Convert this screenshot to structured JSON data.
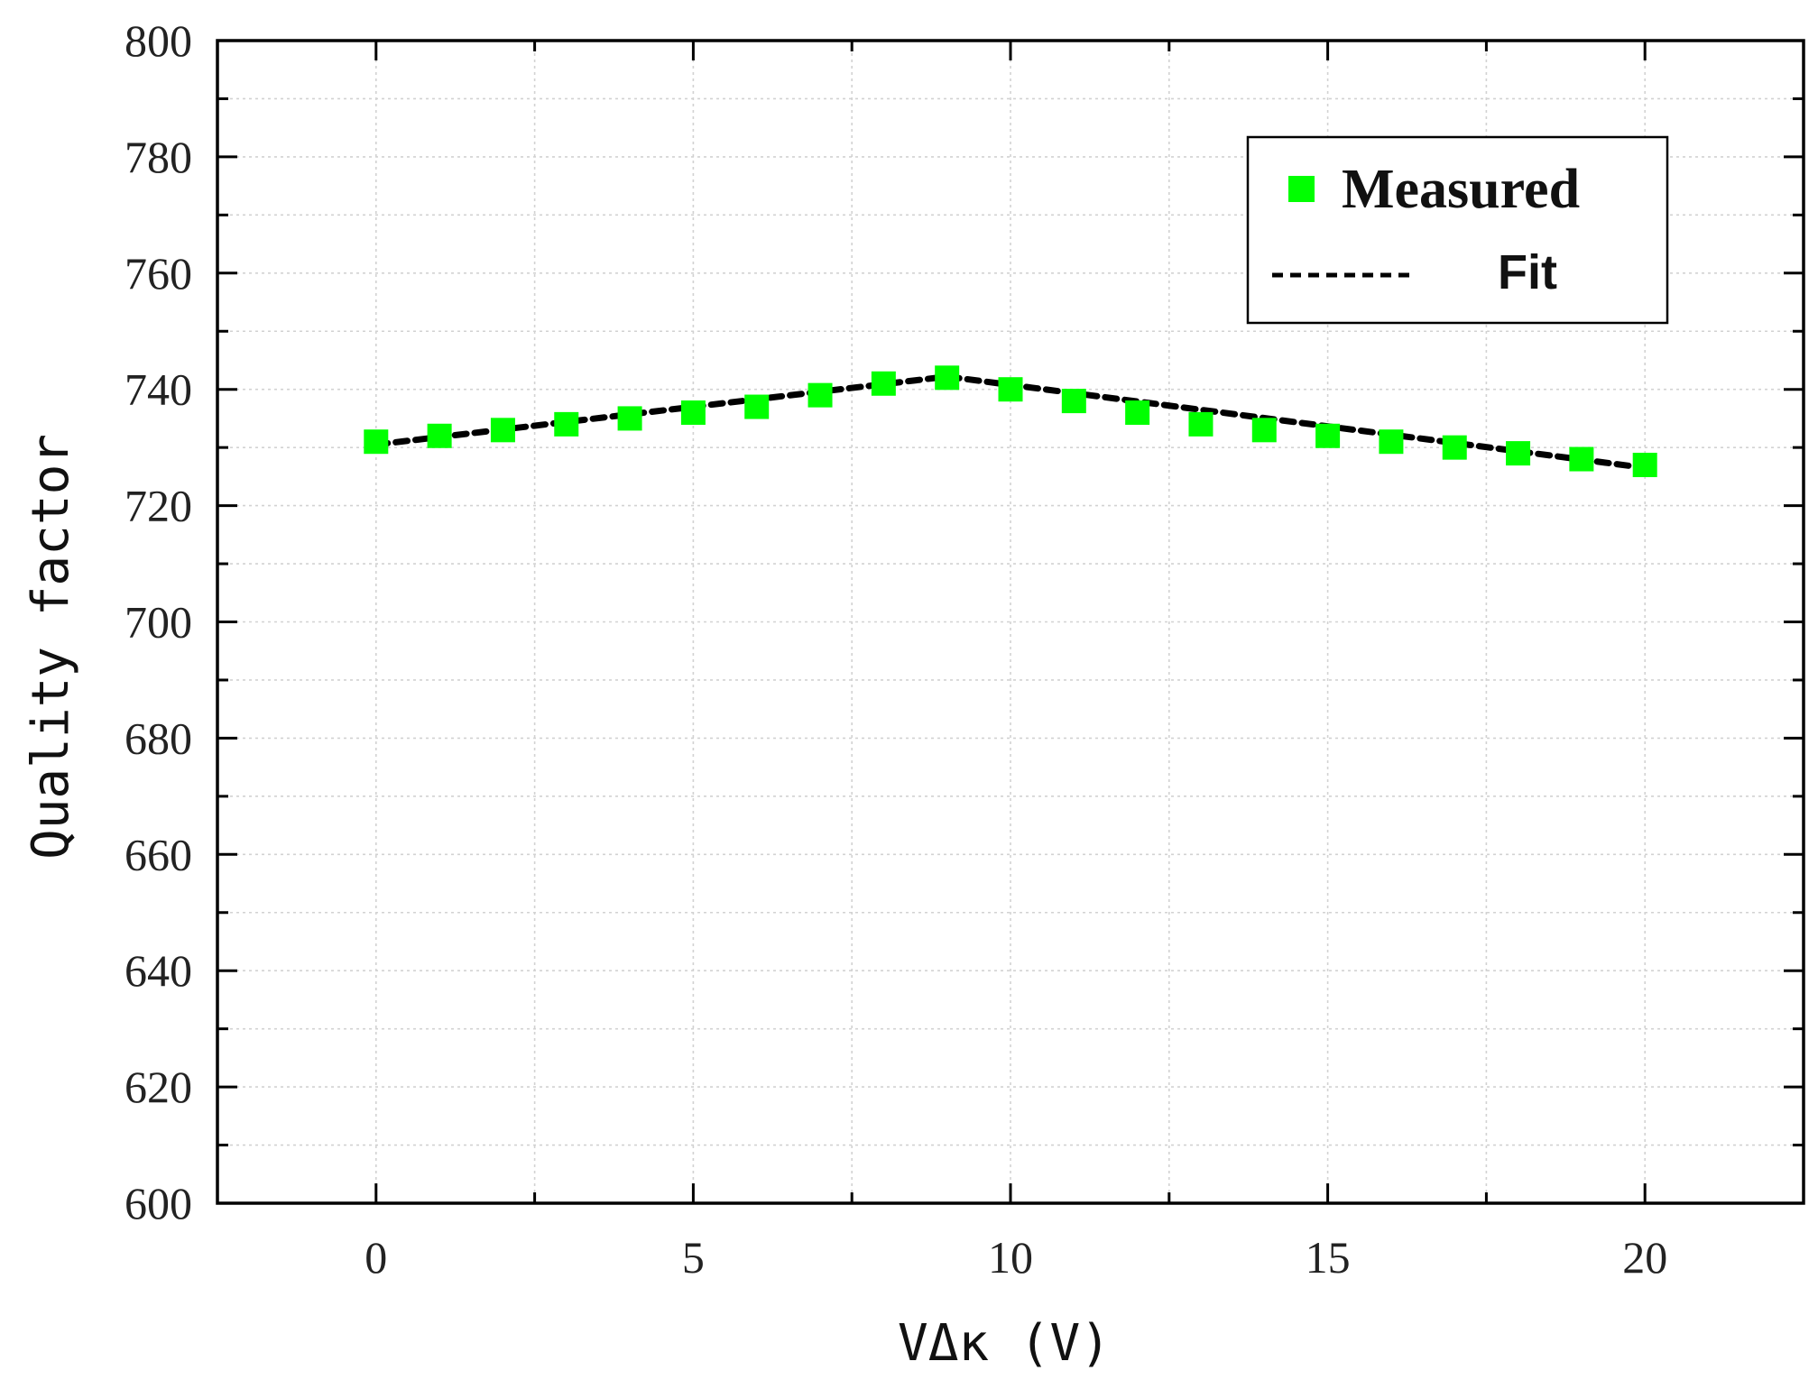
{
  "chart_data": {
    "type": "scatter",
    "title": "",
    "xlabel": "VΔκ (V)",
    "ylabel": "Quality factor",
    "xlim": [
      -2.5,
      22.5
    ],
    "ylim": [
      600,
      800
    ],
    "xticks": [
      0,
      5,
      10,
      15,
      20
    ],
    "yticks": [
      600,
      620,
      640,
      660,
      680,
      700,
      720,
      740,
      760,
      780,
      800
    ],
    "xtick_labels": [
      "0",
      "5",
      "10",
      "15",
      "20"
    ],
    "ytick_labels": [
      "600",
      "620",
      "640",
      "660",
      "680",
      "700",
      "720",
      "740",
      "760",
      "780",
      "800"
    ],
    "grid": true,
    "legend_position": "top-right",
    "legend": {
      "measured_label": "Measured",
      "fit_label": "Fit"
    },
    "series": [
      {
        "name": "Measured",
        "kind": "markers",
        "marker": "square",
        "color": "#00ff00",
        "x": [
          0,
          1,
          2,
          3,
          4,
          5,
          6,
          7,
          8,
          9,
          10,
          11,
          12,
          13,
          14,
          15,
          16,
          17,
          18,
          19,
          20
        ],
        "values": [
          731,
          732,
          733,
          734,
          735,
          736,
          737,
          739,
          741,
          742,
          740,
          738,
          736,
          734,
          733,
          732,
          731,
          730,
          729,
          728,
          727
        ]
      },
      {
        "name": "Fit",
        "kind": "dashed-line",
        "color": "#000000",
        "x": [
          0,
          9,
          20
        ],
        "values": [
          730.5,
          742.2,
          726.5
        ]
      }
    ]
  }
}
